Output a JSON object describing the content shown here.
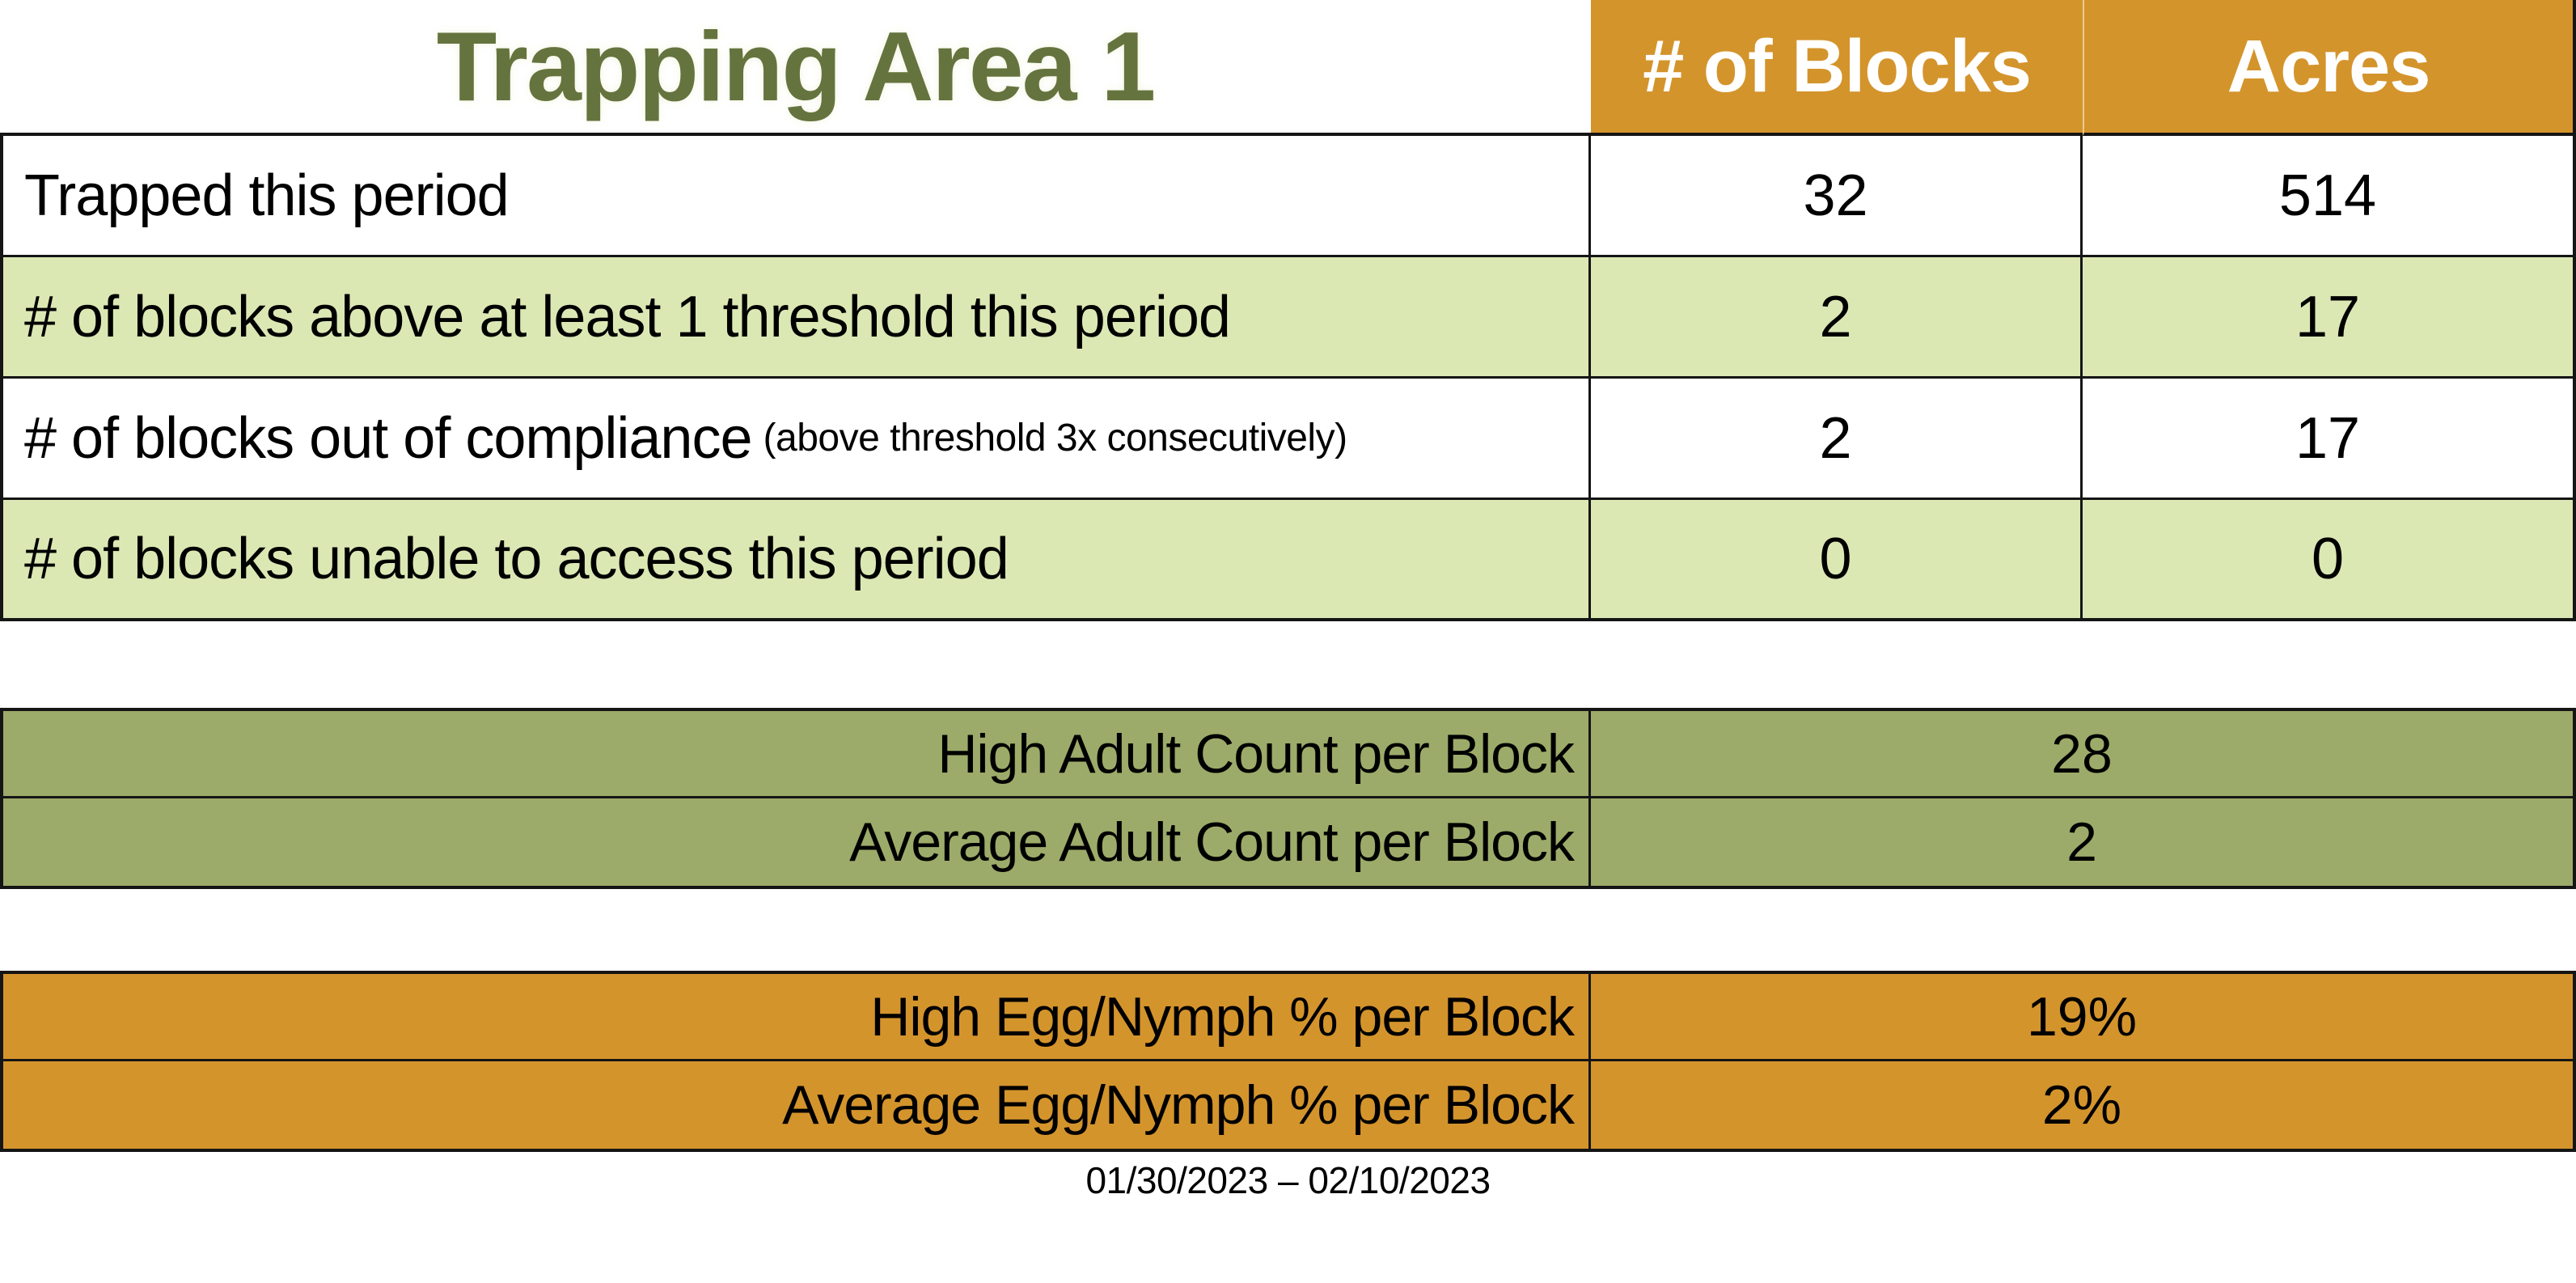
{
  "title": "Trapping Area 1",
  "summary_table": {
    "columns": [
      "# of Blocks",
      "Acres"
    ],
    "rows": [
      {
        "label": "Trapped this period",
        "note": "",
        "blocks": "32",
        "acres": "514"
      },
      {
        "label": "# of blocks above at least 1 threshold this period",
        "note": "",
        "blocks": "2",
        "acres": "17"
      },
      {
        "label": "# of blocks out of compliance",
        "note": "(above threshold 3x consecutively)",
        "blocks": "2",
        "acres": "17"
      },
      {
        "label": "# of blocks unable to access this period",
        "note": "",
        "blocks": "0",
        "acres": "0"
      }
    ]
  },
  "adult_table": {
    "rows": [
      {
        "label": "High Adult Count per Block",
        "value": "28"
      },
      {
        "label": "Average Adult Count per Block",
        "value": "2"
      }
    ]
  },
  "egg_table": {
    "rows": [
      {
        "label": "High Egg/Nymph % per Block",
        "value": "19%"
      },
      {
        "label": "Average Egg/Nymph % per Block",
        "value": "2%"
      }
    ]
  },
  "date_range": "01/30/2023 – 02/10/2023",
  "colors": {
    "header_orange": "#D4942C",
    "row_green": "#DBE8B4",
    "olive": "#9CAB69",
    "title_green": "#65743E",
    "header_text": "#FFFFFF",
    "border": "#151515"
  }
}
